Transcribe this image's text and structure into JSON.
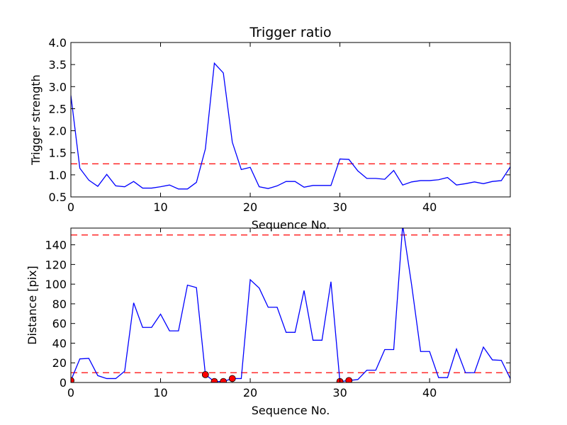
{
  "chart_data": [
    {
      "type": "line",
      "title": "Trigger ratio",
      "xlabel": "Sequence No.",
      "ylabel": "Trigger strength",
      "xlim": [
        0,
        49
      ],
      "ylim": [
        0.5,
        4.0
      ],
      "x_ticks": [
        0,
        10,
        20,
        30,
        40
      ],
      "y_ticks": [
        0.5,
        1.0,
        1.5,
        2.0,
        2.5,
        3.0,
        3.5,
        4.0
      ],
      "x_tick_labels": [
        "0",
        "10",
        "20",
        "30",
        "40"
      ],
      "y_tick_labels": [
        "0.5",
        "1.0",
        "1.5",
        "2.0",
        "2.5",
        "3.0",
        "3.5",
        "4.0"
      ],
      "grid": false,
      "series": [
        {
          "color": "#0000ff",
          "x": [
            0,
            1,
            2,
            3,
            4,
            5,
            6,
            7,
            8,
            9,
            10,
            11,
            12,
            13,
            14,
            15,
            16,
            17,
            18,
            19,
            20,
            21,
            22,
            23,
            24,
            25,
            26,
            27,
            28,
            29,
            30,
            31,
            32,
            33,
            34,
            35,
            36,
            37,
            38,
            39,
            40,
            41,
            42,
            43,
            44,
            45,
            46,
            47,
            48,
            49
          ],
          "values": [
            2.8,
            1.15,
            0.88,
            0.74,
            1.01,
            0.75,
            0.73,
            0.85,
            0.7,
            0.7,
            0.73,
            0.77,
            0.68,
            0.68,
            0.83,
            1.59,
            3.53,
            3.31,
            1.74,
            1.12,
            1.17,
            0.73,
            0.69,
            0.75,
            0.85,
            0.85,
            0.72,
            0.76,
            0.76,
            0.76,
            1.36,
            1.35,
            1.09,
            0.92,
            0.92,
            0.9,
            1.1,
            0.77,
            0.84,
            0.87,
            0.87,
            0.89,
            0.94,
            0.77,
            0.8,
            0.84,
            0.8,
            0.85,
            0.87,
            1.18
          ]
        }
      ],
      "reference_lines": [
        {
          "y": 1.25,
          "color": "#ff0000",
          "style": "dashed"
        }
      ]
    },
    {
      "type": "line",
      "title": "",
      "xlabel": "Sequence No.",
      "ylabel": "Distance [pix]",
      "xlim": [
        0,
        49
      ],
      "ylim": [
        0,
        157
      ],
      "x_ticks": [
        0,
        10,
        20,
        30,
        40
      ],
      "y_ticks": [
        0,
        20,
        40,
        60,
        80,
        100,
        120,
        140
      ],
      "x_tick_labels": [
        "0",
        "10",
        "20",
        "30",
        "40"
      ],
      "y_tick_labels": [
        "0",
        "20",
        "40",
        "60",
        "80",
        "100",
        "120",
        "140"
      ],
      "grid": false,
      "series": [
        {
          "color": "#0000ff",
          "x": [
            0,
            1,
            2,
            3,
            4,
            5,
            6,
            7,
            8,
            9,
            10,
            11,
            12,
            13,
            14,
            15,
            16,
            17,
            18,
            19,
            20,
            21,
            22,
            23,
            24,
            25,
            26,
            27,
            28,
            29,
            30,
            31,
            32,
            33,
            34,
            35,
            36,
            37,
            38,
            39,
            40,
            41,
            42,
            43,
            44,
            45,
            46,
            47,
            48,
            49
          ],
          "values": [
            2,
            24,
            24.5,
            7,
            4,
            4,
            11.5,
            81,
            56,
            56,
            69.5,
            52.5,
            52.5,
            99,
            96.5,
            8,
            1,
            1,
            4,
            4,
            104.5,
            96,
            76.5,
            76.5,
            51,
            51,
            93.5,
            43,
            43,
            102.5,
            1,
            2,
            3,
            12.5,
            12.5,
            33.5,
            33.5,
            160,
            99,
            31.5,
            31.5,
            5,
            5,
            34,
            10,
            10,
            36,
            23,
            22.5,
            4
          ]
        }
      ],
      "markers": {
        "color": "#ff0000",
        "points": [
          {
            "x": 0,
            "y": 2
          },
          {
            "x": 15,
            "y": 8
          },
          {
            "x": 16,
            "y": 1
          },
          {
            "x": 17,
            "y": 1
          },
          {
            "x": 18,
            "y": 4
          },
          {
            "x": 30,
            "y": 1
          },
          {
            "x": 31,
            "y": 2
          }
        ]
      },
      "reference_lines": [
        {
          "y": 10,
          "color": "#ff0000",
          "style": "dashed"
        },
        {
          "y": 150,
          "color": "#ff0000",
          "style": "dashed"
        }
      ]
    }
  ]
}
